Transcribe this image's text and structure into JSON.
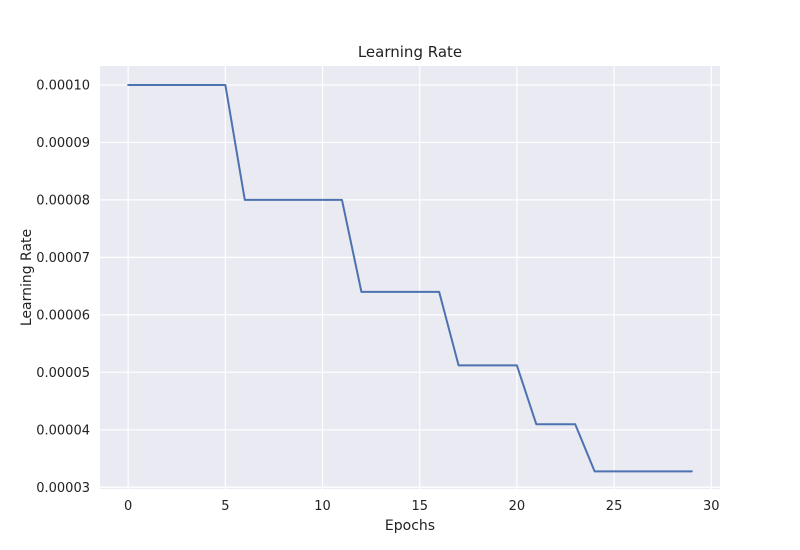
{
  "chart_data": {
    "type": "line",
    "title": "Learning Rate",
    "xlabel": "Epochs",
    "ylabel": "Learning Rate",
    "xlim": [
      -1.45,
      30.45
    ],
    "ylim": [
      2.97e-05,
      0.0001033
    ],
    "xticks": [
      0,
      5,
      10,
      15,
      20,
      25,
      30
    ],
    "xtick_labels": [
      "0",
      "5",
      "10",
      "15",
      "20",
      "25",
      "30"
    ],
    "yticks": [
      3e-05,
      4e-05,
      5e-05,
      6e-05,
      7e-05,
      8e-05,
      9e-05,
      0.0001
    ],
    "ytick_labels": [
      "0.00003",
      "0.00004",
      "0.00005",
      "0.00006",
      "0.00007",
      "0.00008",
      "0.00009",
      "0.00010"
    ],
    "grid": true,
    "x": [
      0,
      1,
      2,
      3,
      4,
      5,
      6,
      7,
      8,
      9,
      10,
      11,
      12,
      13,
      14,
      15,
      16,
      17,
      18,
      19,
      20,
      21,
      22,
      23,
      24,
      25,
      26,
      27,
      28,
      29
    ],
    "series": [
      {
        "values": [
          0.0001,
          0.0001,
          0.0001,
          0.0001,
          0.0001,
          0.0001,
          8e-05,
          8e-05,
          8e-05,
          8e-05,
          8e-05,
          8e-05,
          6.4e-05,
          6.4e-05,
          6.4e-05,
          6.4e-05,
          6.4e-05,
          5.12e-05,
          5.12e-05,
          5.12e-05,
          5.12e-05,
          4.096e-05,
          4.096e-05,
          4.096e-05,
          3.2768e-05,
          3.2768e-05,
          3.2768e-05,
          3.2768e-05,
          3.2768e-05,
          3.2768e-05
        ],
        "color": "#4c72b0"
      }
    ],
    "colors": {
      "plot_background": "#eaeaf2",
      "grid": "#ffffff",
      "text": "#222222"
    }
  }
}
